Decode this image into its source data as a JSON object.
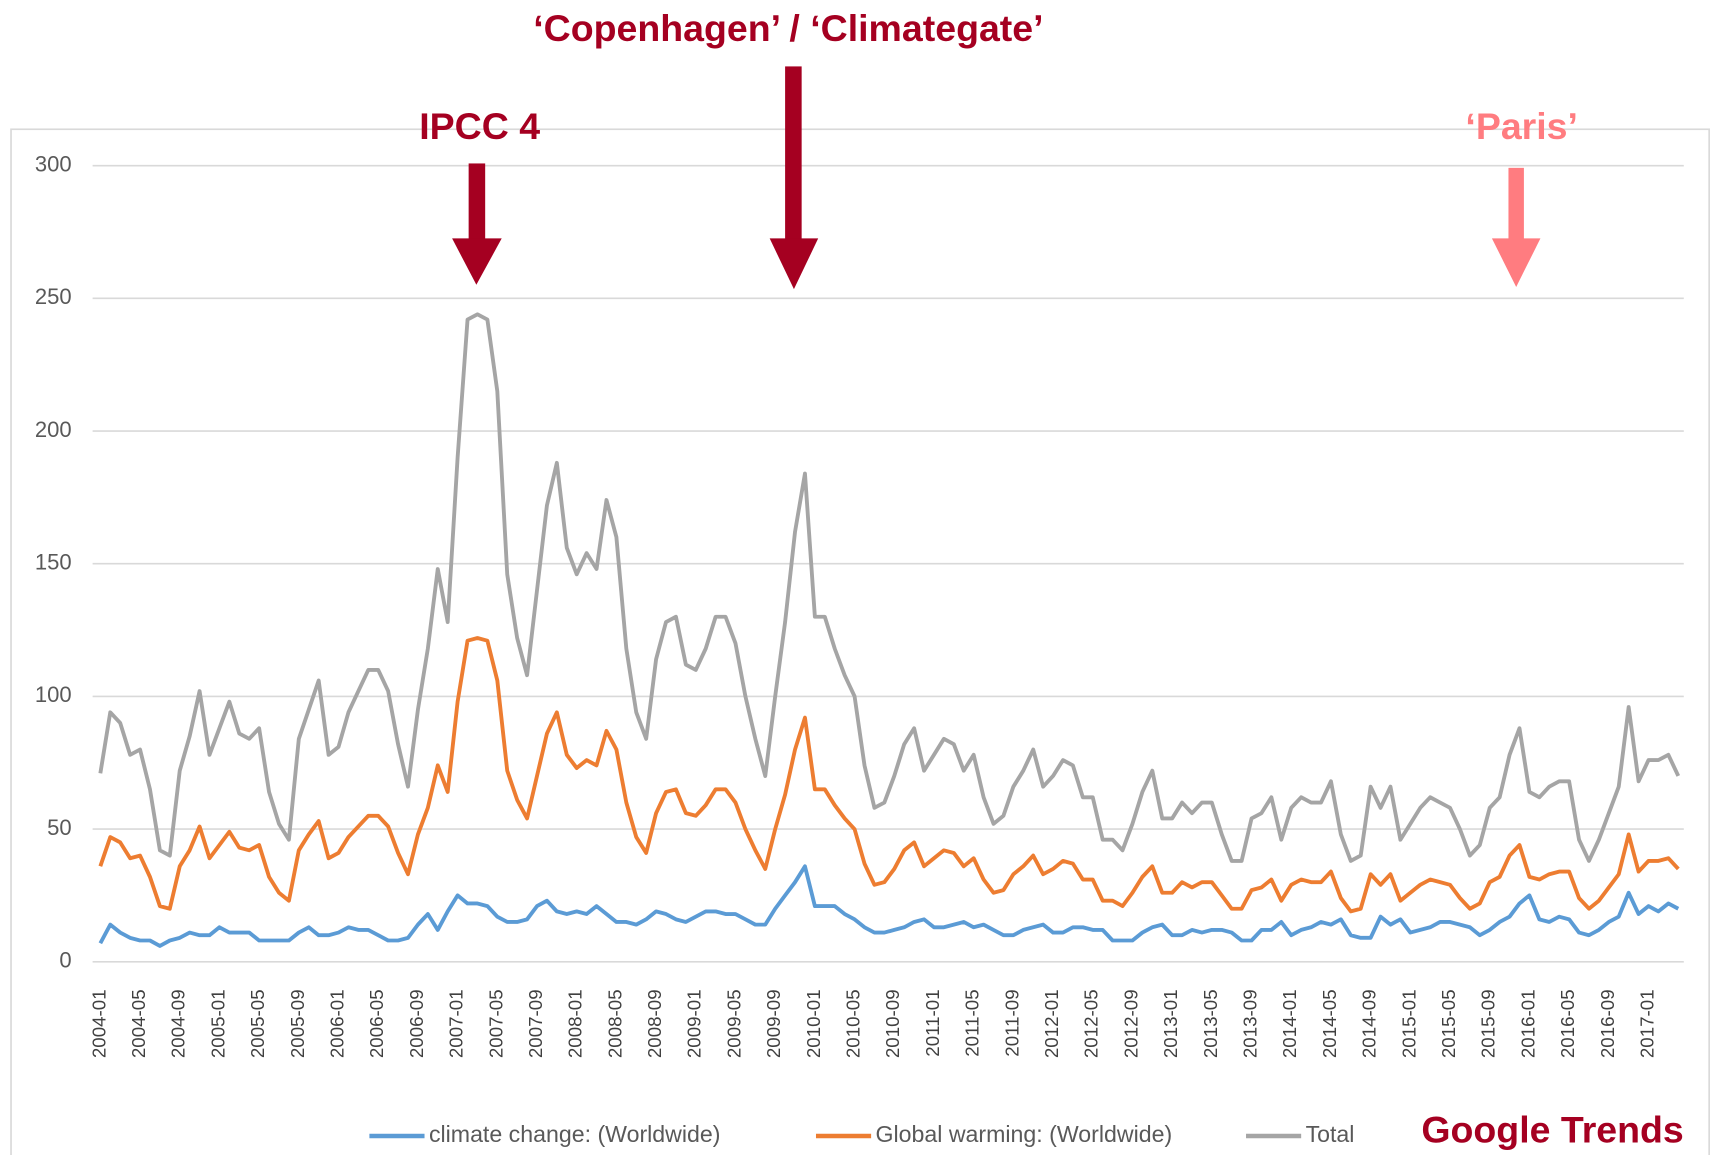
{
  "chart_data": {
    "type": "line",
    "annotations": [
      "‘Copenhagen’ / ‘Climategate’",
      "IPCC 4",
      "‘Paris’",
      "Google Trends"
    ],
    "categories": [
      "2004-01",
      null,
      null,
      null,
      "2004-05",
      null,
      null,
      null,
      "2004-09",
      null,
      null,
      null,
      "2005-01",
      null,
      null,
      null,
      "2005-05",
      null,
      null,
      null,
      "2005-09",
      null,
      null,
      null,
      "2006-01",
      null,
      null,
      null,
      "2006-05",
      null,
      null,
      null,
      "2006-09",
      null,
      null,
      null,
      "2007-01",
      null,
      null,
      null,
      "2007-05",
      null,
      null,
      null,
      "2007-09",
      null,
      null,
      null,
      "2008-01",
      null,
      null,
      null,
      "2008-05",
      null,
      null,
      null,
      "2008-09",
      null,
      null,
      null,
      "2009-01",
      null,
      null,
      null,
      "2009-05",
      null,
      null,
      null,
      "2009-09",
      null,
      null,
      null,
      "2010-01",
      null,
      null,
      null,
      "2010-05",
      null,
      null,
      null,
      "2010-09",
      null,
      null,
      null,
      "2011-01",
      null,
      null,
      null,
      "2011-05",
      null,
      null,
      null,
      "2011-09",
      null,
      null,
      null,
      "2012-01",
      null,
      null,
      null,
      "2012-05",
      null,
      null,
      null,
      "2012-09",
      null,
      null,
      null,
      "2013-01",
      null,
      null,
      null,
      "2013-05",
      null,
      null,
      null,
      "2013-09",
      null,
      null,
      null,
      "2014-01",
      null,
      null,
      null,
      "2014-05",
      null,
      null,
      null,
      "2014-09",
      null,
      null,
      null,
      "2015-01",
      null,
      null,
      null,
      "2015-05",
      null,
      null,
      null,
      "2015-09",
      null,
      null,
      null,
      "2016-01",
      null,
      null,
      null,
      "2016-05",
      null,
      null,
      null,
      "2016-09",
      null,
      null,
      null,
      "2017-01",
      null,
      null,
      null
    ],
    "series": [
      {
        "name": "climate change: (Worldwide)",
        "color": "#5b9bd5",
        "values": [
          7,
          14,
          11,
          9,
          8,
          8,
          6,
          8,
          9,
          11,
          10,
          10,
          13,
          11,
          11,
          11,
          8,
          8,
          8,
          8,
          11,
          13,
          10,
          10,
          11,
          13,
          12,
          12,
          10,
          8,
          8,
          9,
          14,
          18,
          12,
          19,
          25,
          22,
          22,
          21,
          17,
          15,
          15,
          16,
          21,
          23,
          19,
          18,
          19,
          18,
          21,
          18,
          15,
          15,
          14,
          16,
          19,
          18,
          16,
          15,
          17,
          19,
          19,
          18,
          18,
          16,
          14,
          14,
          20,
          25,
          30,
          36,
          21,
          21,
          21,
          18,
          16,
          13,
          11,
          11,
          12,
          13,
          15,
          16,
          13,
          13,
          14,
          15,
          13,
          14,
          12,
          10,
          10,
          12,
          13,
          14,
          11,
          11,
          13,
          13,
          12,
          12,
          8,
          8,
          8,
          11,
          13,
          14,
          10,
          10,
          12,
          11,
          12,
          12,
          11,
          8,
          8,
          12,
          12,
          15,
          10,
          12,
          13,
          15,
          14,
          16,
          10,
          9,
          9,
          17,
          14,
          16,
          11,
          12,
          13,
          15,
          15,
          14,
          13,
          10,
          12,
          15,
          17,
          22,
          25,
          16,
          15,
          17,
          16,
          11,
          10,
          12,
          15,
          17,
          26,
          18,
          21,
          19,
          22,
          20
        ]
      },
      {
        "name": "Global warming: (Worldwide)",
        "color": "#ed7d31",
        "values": [
          36,
          47,
          45,
          39,
          40,
          32,
          21,
          20,
          36,
          42,
          51,
          39,
          44,
          49,
          43,
          42,
          44,
          32,
          26,
          23,
          42,
          48,
          53,
          39,
          41,
          47,
          51,
          55,
          55,
          51,
          41,
          33,
          48,
          58,
          74,
          64,
          98,
          121,
          122,
          121,
          106,
          72,
          61,
          54,
          70,
          86,
          94,
          78,
          73,
          76,
          74,
          87,
          80,
          60,
          47,
          41,
          56,
          64,
          65,
          56,
          55,
          59,
          65,
          65,
          60,
          50,
          42,
          35,
          50,
          63,
          80,
          92,
          65,
          65,
          59,
          54,
          50,
          37,
          29,
          30,
          35,
          42,
          45,
          36,
          39,
          42,
          41,
          36,
          39,
          31,
          26,
          27,
          33,
          36,
          40,
          33,
          35,
          38,
          37,
          31,
          31,
          23,
          23,
          21,
          26,
          32,
          36,
          26,
          26,
          30,
          28,
          30,
          30,
          25,
          20,
          20,
          27,
          28,
          31,
          23,
          29,
          31,
          30,
          30,
          34,
          24,
          19,
          20,
          33,
          29,
          33,
          23,
          26,
          29,
          31,
          30,
          29,
          24,
          20,
          22,
          30,
          32,
          40,
          44,
          32,
          31,
          33,
          34,
          34,
          24,
          20,
          23,
          28,
          33,
          48,
          34,
          38,
          38,
          39,
          35
        ]
      },
      {
        "name": "Total",
        "color": "#a5a5a5",
        "values": [
          71,
          94,
          90,
          78,
          80,
          65,
          42,
          40,
          72,
          85,
          102,
          78,
          88,
          98,
          86,
          84,
          88,
          64,
          52,
          46,
          84,
          95,
          106,
          78,
          81,
          94,
          102,
          110,
          110,
          102,
          82,
          66,
          95,
          118,
          148,
          128,
          190,
          242,
          244,
          242,
          215,
          146,
          122,
          108,
          140,
          172,
          188,
          156,
          146,
          154,
          148,
          174,
          160,
          118,
          94,
          84,
          114,
          128,
          130,
          112,
          110,
          118,
          130,
          130,
          120,
          100,
          84,
          70,
          100,
          128,
          162,
          184,
          130,
          130,
          118,
          108,
          100,
          74,
          58,
          60,
          70,
          82,
          88,
          72,
          78,
          84,
          82,
          72,
          78,
          62,
          52,
          55,
          66,
          72,
          80,
          66,
          70,
          76,
          74,
          62,
          62,
          46,
          46,
          42,
          52,
          64,
          72,
          54,
          54,
          60,
          56,
          60,
          60,
          48,
          38,
          38,
          54,
          56,
          62,
          46,
          58,
          62,
          60,
          60,
          68,
          48,
          38,
          40,
          66,
          58,
          66,
          46,
          52,
          58,
          62,
          60,
          58,
          50,
          40,
          44,
          58,
          62,
          78,
          88,
          64,
          62,
          66,
          68,
          68,
          46,
          38,
          46,
          56,
          66,
          96,
          68,
          76,
          76,
          78,
          70
        ]
      }
    ],
    "ylim": [
      0,
      300
    ],
    "yticks": [
      0,
      50,
      100,
      150,
      200,
      250,
      300
    ],
    "grid": true,
    "legend": "bottom"
  }
}
